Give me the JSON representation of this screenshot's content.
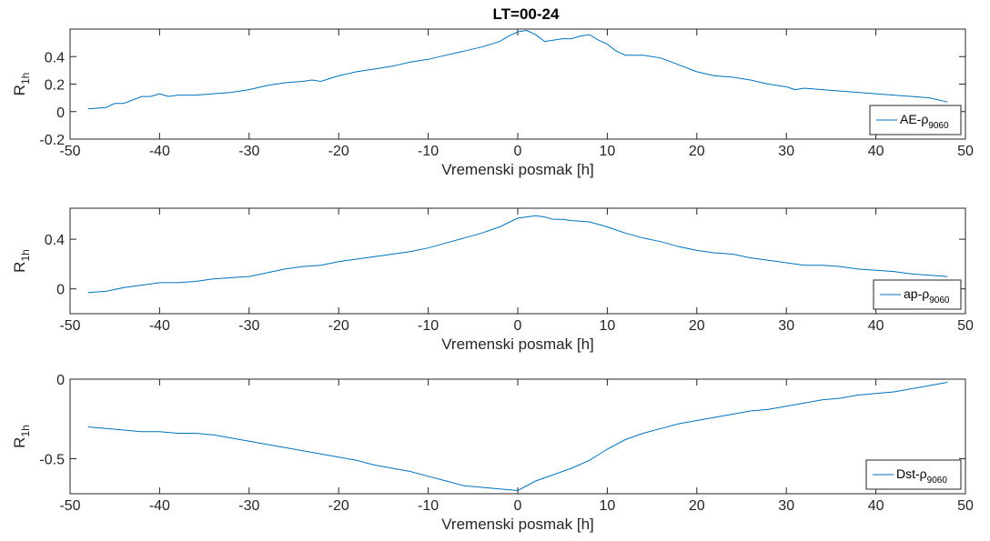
{
  "figure_title": "LT=00-24",
  "chart_data": [
    {
      "type": "line",
      "title": "LT=00-24",
      "xlabel": "Vremenski posmak [h]",
      "ylabel": "R",
      "ylabel_sub": "1h",
      "xlim": [
        -50,
        50
      ],
      "ylim": [
        -0.2,
        0.6
      ],
      "xticks": [
        -50,
        -40,
        -30,
        -20,
        -10,
        0,
        10,
        20,
        30,
        40,
        50
      ],
      "xtick_labels": [
        "-50",
        "-40",
        "-30",
        "-20",
        "-10",
        "0",
        "10",
        "20",
        "30",
        "40",
        "50"
      ],
      "yticks": [
        -0.2,
        0,
        0.2,
        0.4
      ],
      "ytick_labels": [
        "-0.2",
        "0",
        "0.2",
        "0.4"
      ],
      "legend": {
        "label": "AE-ρ",
        "sub": "9060",
        "position": "bottom-right"
      },
      "series": [
        {
          "color": "#0072BD",
          "x": [
            -48,
            -46,
            -45,
            -44,
            -42,
            -41,
            -40,
            -39,
            -38,
            -36,
            -34,
            -32,
            -30,
            -28,
            -26,
            -24,
            -23,
            -22,
            -20,
            -18,
            -16,
            -14,
            -12,
            -10,
            -8,
            -6,
            -4,
            -2,
            -1,
            0,
            1,
            2,
            3,
            4,
            5,
            6,
            7,
            8,
            9,
            10,
            11,
            12,
            14,
            16,
            18,
            20,
            22,
            24,
            26,
            28,
            30,
            31,
            32,
            34,
            36,
            38,
            40,
            42,
            44,
            46,
            48
          ],
          "y": [
            0.02,
            0.03,
            0.06,
            0.06,
            0.11,
            0.11,
            0.13,
            0.11,
            0.12,
            0.12,
            0.13,
            0.14,
            0.16,
            0.19,
            0.21,
            0.22,
            0.23,
            0.22,
            0.26,
            0.29,
            0.31,
            0.33,
            0.36,
            0.38,
            0.41,
            0.44,
            0.47,
            0.51,
            0.55,
            0.58,
            0.59,
            0.56,
            0.51,
            0.52,
            0.53,
            0.53,
            0.55,
            0.56,
            0.52,
            0.49,
            0.44,
            0.41,
            0.41,
            0.39,
            0.34,
            0.29,
            0.26,
            0.25,
            0.23,
            0.2,
            0.18,
            0.16,
            0.17,
            0.16,
            0.15,
            0.14,
            0.13,
            0.12,
            0.11,
            0.1,
            0.07
          ]
        }
      ]
    },
    {
      "type": "line",
      "xlabel": "Vremenski posmak [h]",
      "ylabel": "R",
      "ylabel_sub": "1h",
      "xlim": [
        -50,
        50
      ],
      "ylim": [
        -0.2,
        0.65
      ],
      "xticks": [
        -50,
        -40,
        -30,
        -20,
        -10,
        0,
        10,
        20,
        30,
        40,
        50
      ],
      "xtick_labels": [
        "-50",
        "-40",
        "-30",
        "-20",
        "-10",
        "0",
        "10",
        "20",
        "30",
        "40",
        "50"
      ],
      "yticks": [
        0,
        0.4
      ],
      "ytick_labels": [
        "0",
        "0.4"
      ],
      "legend": {
        "label": "ap-ρ",
        "sub": "9060",
        "position": "bottom-right"
      },
      "series": [
        {
          "color": "#0072BD",
          "x": [
            -48,
            -46,
            -44,
            -42,
            -40,
            -38,
            -36,
            -34,
            -32,
            -30,
            -28,
            -26,
            -24,
            -22,
            -20,
            -18,
            -16,
            -14,
            -12,
            -10,
            -8,
            -6,
            -4,
            -2,
            0,
            1,
            2,
            3,
            4,
            5,
            6,
            8,
            10,
            12,
            14,
            16,
            18,
            20,
            22,
            24,
            26,
            28,
            30,
            32,
            34,
            36,
            38,
            40,
            42,
            44,
            46,
            48
          ],
          "y": [
            -0.03,
            -0.02,
            0.01,
            0.03,
            0.05,
            0.05,
            0.06,
            0.08,
            0.09,
            0.1,
            0.13,
            0.16,
            0.18,
            0.19,
            0.22,
            0.24,
            0.26,
            0.28,
            0.3,
            0.33,
            0.37,
            0.41,
            0.45,
            0.5,
            0.57,
            0.58,
            0.59,
            0.58,
            0.56,
            0.56,
            0.55,
            0.54,
            0.5,
            0.45,
            0.41,
            0.38,
            0.34,
            0.31,
            0.29,
            0.28,
            0.25,
            0.23,
            0.21,
            0.19,
            0.19,
            0.18,
            0.16,
            0.15,
            0.14,
            0.12,
            0.11,
            0.1
          ]
        }
      ]
    },
    {
      "type": "line",
      "xlabel": "Vremenski posmak [h]",
      "ylabel": "R",
      "ylabel_sub": "1h",
      "xlim": [
        -50,
        50
      ],
      "ylim": [
        -0.72,
        0
      ],
      "xticks": [
        -50,
        -40,
        -30,
        -20,
        -10,
        0,
        10,
        20,
        30,
        40,
        50
      ],
      "xtick_labels": [
        "-50",
        "-40",
        "-30",
        "-20",
        "-10",
        "0",
        "10",
        "20",
        "30",
        "40",
        "50"
      ],
      "yticks": [
        -0.5,
        0
      ],
      "ytick_labels": [
        "-0.5",
        "0"
      ],
      "legend": {
        "label": "Dst-ρ",
        "sub": "9060",
        "position": "bottom-right"
      },
      "series": [
        {
          "color": "#0072BD",
          "x": [
            -48,
            -46,
            -44,
            -42,
            -40,
            -38,
            -36,
            -34,
            -32,
            -30,
            -28,
            -26,
            -24,
            -22,
            -20,
            -18,
            -16,
            -14,
            -12,
            -10,
            -8,
            -6,
            -4,
            -2,
            0,
            2,
            4,
            6,
            8,
            10,
            12,
            14,
            16,
            18,
            20,
            22,
            24,
            26,
            28,
            30,
            32,
            34,
            36,
            38,
            40,
            42,
            44,
            46,
            48
          ],
          "y": [
            -0.3,
            -0.31,
            -0.32,
            -0.33,
            -0.33,
            -0.34,
            -0.34,
            -0.35,
            -0.37,
            -0.39,
            -0.41,
            -0.43,
            -0.45,
            -0.47,
            -0.49,
            -0.51,
            -0.54,
            -0.56,
            -0.58,
            -0.61,
            -0.64,
            -0.67,
            -0.68,
            -0.69,
            -0.7,
            -0.64,
            -0.6,
            -0.56,
            -0.51,
            -0.44,
            -0.38,
            -0.34,
            -0.31,
            -0.28,
            -0.26,
            -0.24,
            -0.22,
            -0.2,
            -0.19,
            -0.17,
            -0.15,
            -0.13,
            -0.12,
            -0.1,
            -0.09,
            -0.08,
            -0.06,
            -0.04,
            -0.02
          ]
        }
      ]
    }
  ]
}
